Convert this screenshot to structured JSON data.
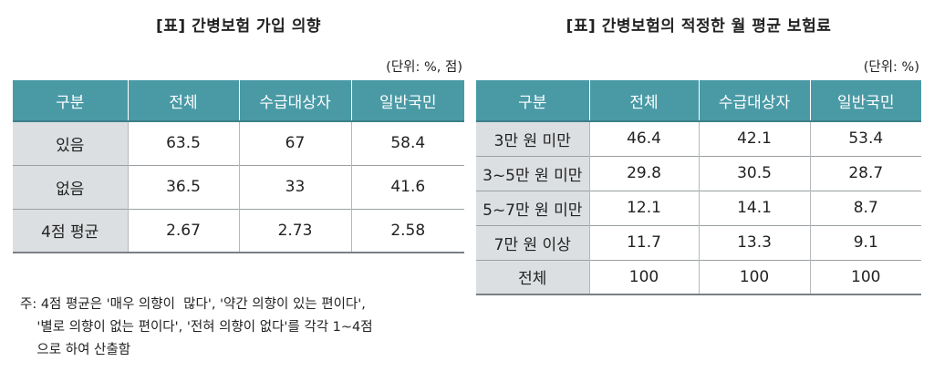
{
  "left": {
    "title": "[표] 간병보험 가입 의향",
    "unit": "(단위: %, 점)",
    "headers": [
      "구분",
      "전체",
      "수급대상자",
      "일반국민"
    ],
    "rows": [
      {
        "label": "있음",
        "values": [
          "63.5",
          "67",
          "58.4"
        ]
      },
      {
        "label": "없음",
        "values": [
          "36.5",
          "33",
          "41.6"
        ]
      },
      {
        "label": "4점 평균",
        "values": [
          "2.67",
          "2.73",
          "2.58"
        ]
      }
    ],
    "notes": [
      "주: 4점 평균은 '매우 의향이  많다', '약간 의향이 있는 편이다',",
      "    '별로 의향이 없는 편이다', '전혀 의향이 없다'를 각각 1~4점",
      "    으로 하여 산출함"
    ]
  },
  "right": {
    "title": "[표] 간병보험의 적정한 월 평균 보험료",
    "unit": "(단위: %)",
    "headers": [
      "구분",
      "전체",
      "수급대상자",
      "일반국민"
    ],
    "rows": [
      {
        "label": "3만 원 미만",
        "values": [
          "46.4",
          "42.1",
          "53.4"
        ]
      },
      {
        "label": "3~5만 원 미만",
        "values": [
          "29.8",
          "30.5",
          "28.7"
        ]
      },
      {
        "label": "5~7만 원 미만",
        "values": [
          "12.1",
          "14.1",
          "8.7"
        ]
      },
      {
        "label": "7만 원 이상",
        "values": [
          "11.7",
          "13.3",
          "9.1"
        ]
      },
      {
        "label": "전체",
        "values": [
          "100",
          "100",
          "100"
        ]
      }
    ]
  }
}
